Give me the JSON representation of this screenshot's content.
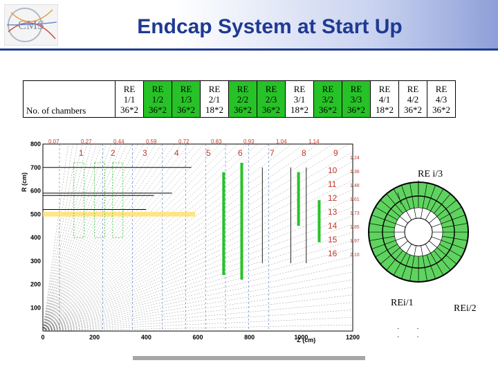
{
  "title": "Endcap System at Start Up",
  "table": {
    "row_label": "No. of chambers",
    "columns": [
      {
        "name": "RE",
        "id": "1/1",
        "count": "36*2",
        "highlight": false
      },
      {
        "name": "RE",
        "id": "1/2",
        "count": "36*2",
        "highlight": true
      },
      {
        "name": "RE",
        "id": "1/3",
        "count": "36*2",
        "highlight": true
      },
      {
        "name": "RE",
        "id": "2/1",
        "count": "18*2",
        "highlight": false
      },
      {
        "name": "RE",
        "id": "2/2",
        "count": "36*2",
        "highlight": true
      },
      {
        "name": "RE",
        "id": "2/3",
        "count": "36*2",
        "highlight": true
      },
      {
        "name": "RE",
        "id": "3/1",
        "count": "18*2",
        "highlight": false
      },
      {
        "name": "RE",
        "id": "3/2",
        "count": "36*2",
        "highlight": true
      },
      {
        "name": "RE",
        "id": "3/3",
        "count": "36*2",
        "highlight": true
      },
      {
        "name": "RE",
        "id": "4/1",
        "count": "18*2",
        "highlight": false
      },
      {
        "name": "RE",
        "id": "4/2",
        "count": "36*2",
        "highlight": false
      },
      {
        "name": "RE",
        "id": "4/3",
        "count": "36*2",
        "highlight": false
      }
    ]
  },
  "plot": {
    "ylabel": "R (cm)",
    "xlabel": "Z (cm)",
    "x_ticks": [
      "0",
      "200",
      "400",
      "600",
      "800",
      "1000",
      "1200"
    ],
    "y_ticks": [
      "100",
      "200",
      "300",
      "400",
      "500",
      "600",
      "700",
      "800"
    ],
    "eta_top": [
      "0.07",
      "0.27",
      "0.44",
      "0.59",
      "0.72",
      "0.83",
      "0.93",
      "1.04",
      "1.14"
    ],
    "eta_right": [
      "1.24",
      "1.36",
      "1.48",
      "1.61",
      "1.73",
      "1.85",
      "1.97",
      "2.10"
    ],
    "sector_numbers": [
      "1",
      "2",
      "3",
      "4",
      "5",
      "6",
      "7",
      "8",
      "9",
      "10",
      "11",
      "12",
      "13",
      "14",
      "15",
      "16"
    ]
  },
  "ring": {
    "label_top": "RE i/3",
    "label_inner": "REi/1",
    "label_outer": "REi/2"
  },
  "colors": {
    "title": "#1f3a93",
    "highlight": "#27c227",
    "ring_green": "#5fd35f"
  }
}
